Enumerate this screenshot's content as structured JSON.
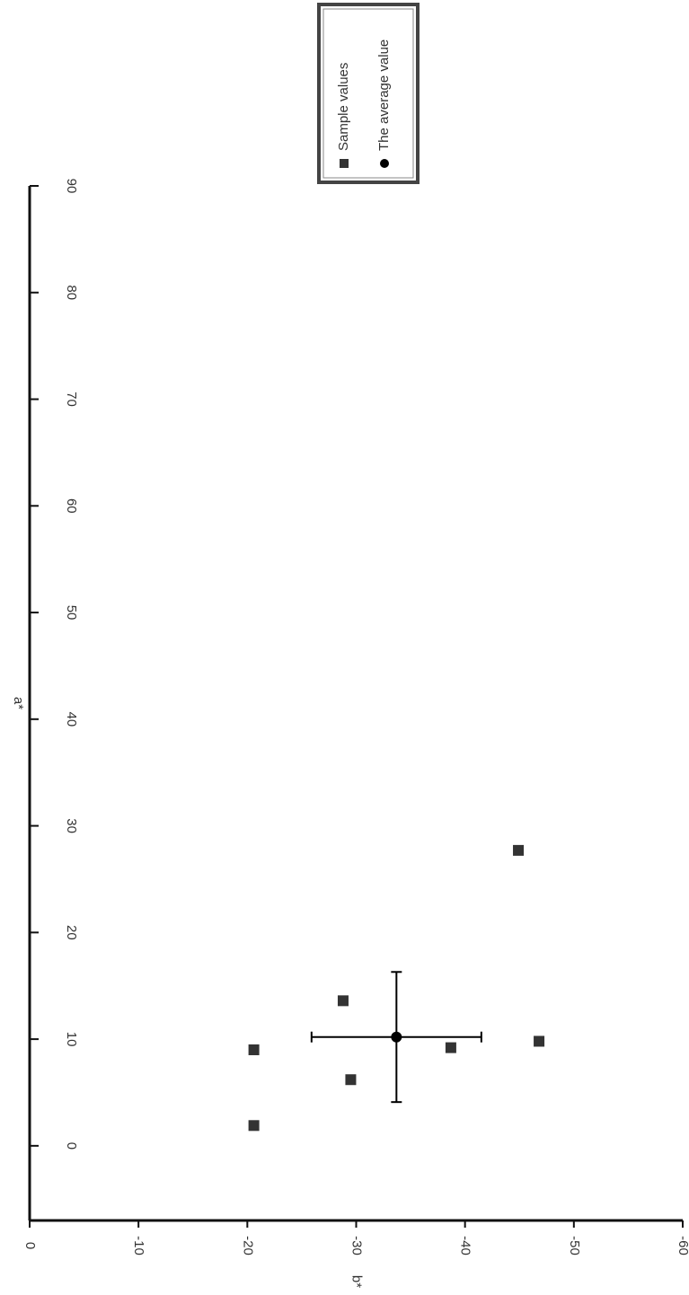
{
  "chart_data": {
    "type": "scatter",
    "x_label": "b*",
    "y_label": "a*",
    "xlim": [
      0,
      -60
    ],
    "xticks": [
      0,
      -10,
      -20,
      -30,
      -40,
      -50,
      -60
    ],
    "ylim": [
      -7,
      90
    ],
    "yticks": [
      0,
      10,
      20,
      30,
      40,
      50,
      60,
      70,
      80,
      90
    ],
    "series": [
      {
        "name": "Sample values",
        "color": "#333333",
        "marker": "square",
        "x": [
          -20.6,
          -20.6,
          -28.8,
          -29.5,
          -38.7,
          -46.8,
          -44.9
        ],
        "values": [
          9.0,
          1.9,
          13.6,
          6.2,
          9.2,
          9.8,
          27.7
        ]
      },
      {
        "name": "The average value",
        "color": "#000000",
        "marker": "circle",
        "x": [
          -33.7
        ],
        "values": [
          10.2
        ],
        "xerr": [
          7.8
        ],
        "yerr": [
          6.1
        ]
      }
    ]
  }
}
